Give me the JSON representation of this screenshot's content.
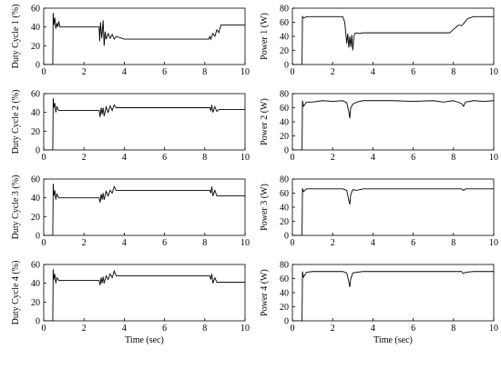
{
  "chart_data": [
    {
      "type": "line",
      "ylabel": "Duty Cycle 1 (%)",
      "xlabel": "",
      "xlim": [
        0,
        10
      ],
      "ylim": [
        0,
        60
      ],
      "xticks": [
        "0",
        "2",
        "4",
        "6",
        "8",
        "10"
      ],
      "yticks": [
        "0",
        "20",
        "40",
        "60"
      ],
      "series": [
        {
          "x": [
            0,
            0.45,
            0.47,
            0.5,
            0.55,
            0.6,
            0.65,
            0.7,
            0.75,
            0.8,
            1.0,
            2.75,
            2.78,
            2.82,
            2.88,
            2.95,
            3.0,
            3.05,
            3.1,
            3.2,
            3.3,
            3.4,
            3.5,
            3.6,
            4.0,
            8.2,
            8.25,
            8.3,
            8.4,
            8.5,
            8.6,
            8.7,
            8.8,
            9.0,
            10
          ],
          "y": [
            0,
            0,
            55,
            42,
            50,
            38,
            44,
            40,
            46,
            40,
            40,
            40,
            25,
            45,
            28,
            47,
            20,
            35,
            27,
            33,
            28,
            32,
            27,
            30,
            27,
            27,
            30,
            27,
            33,
            30,
            37,
            34,
            42,
            42,
            42
          ]
        }
      ]
    },
    {
      "type": "line",
      "ylabel": "Power 1 (W)",
      "xlabel": "",
      "xlim": [
        0,
        10
      ],
      "ylim": [
        0,
        80
      ],
      "xticks": [
        "0",
        "2",
        "4",
        "6",
        "8",
        "10"
      ],
      "yticks": [
        "0",
        "20",
        "40",
        "60",
        "80"
      ],
      "series": [
        {
          "x": [
            0,
            0.48,
            0.5,
            0.55,
            0.7,
            1.0,
            2.5,
            2.6,
            2.65,
            2.7,
            2.75,
            2.8,
            2.85,
            2.9,
            2.95,
            3.0,
            3.05,
            3.1,
            3.2,
            3.3,
            3.5,
            4.0,
            7.8,
            7.9,
            8.0,
            8.1,
            8.2,
            8.3,
            8.4,
            8.5,
            8.7,
            9.0,
            10
          ],
          "y": [
            0,
            0,
            68,
            66,
            68,
            68,
            68,
            60,
            45,
            30,
            44,
            24,
            40,
            25,
            42,
            20,
            38,
            44,
            45,
            44,
            45,
            45,
            45,
            47,
            50,
            52,
            55,
            56,
            55,
            58,
            65,
            68,
            68
          ]
        }
      ]
    },
    {
      "type": "line",
      "ylabel": "Duty Cycle 2 (%)",
      "xlabel": "",
      "xlim": [
        0,
        10
      ],
      "ylim": [
        0,
        60
      ],
      "xticks": [
        "0",
        "2",
        "4",
        "6",
        "8",
        "10"
      ],
      "yticks": [
        "0",
        "20",
        "40",
        "60"
      ],
      "series": [
        {
          "x": [
            0,
            0.45,
            0.47,
            0.5,
            0.55,
            0.6,
            0.65,
            0.75,
            1.0,
            2.75,
            2.8,
            2.85,
            2.9,
            2.95,
            3.0,
            3.1,
            3.2,
            3.3,
            3.4,
            3.5,
            3.6,
            4.0,
            8.25,
            8.3,
            8.35,
            8.4,
            8.5,
            8.6,
            8.7,
            10
          ],
          "y": [
            0,
            0,
            55,
            45,
            50,
            40,
            46,
            42,
            42,
            42,
            35,
            45,
            38,
            45,
            36,
            46,
            40,
            47,
            42,
            48,
            45,
            45,
            45,
            42,
            48,
            40,
            46,
            41,
            43,
            43
          ]
        }
      ]
    },
    {
      "type": "line",
      "ylabel": "Power 2 (W)",
      "xlabel": "",
      "xlim": [
        0,
        10
      ],
      "ylim": [
        0,
        80
      ],
      "xticks": [
        "0",
        "2",
        "4",
        "6",
        "8",
        "10"
      ],
      "yticks": [
        "0",
        "20",
        "40",
        "60",
        "80"
      ],
      "series": [
        {
          "x": [
            0,
            0.48,
            0.5,
            0.55,
            0.7,
            1.0,
            1.5,
            2.0,
            2.5,
            2.7,
            2.8,
            2.85,
            2.9,
            3.0,
            3.2,
            3.5,
            4.0,
            5.0,
            6.0,
            7.0,
            7.5,
            8.0,
            8.4,
            8.5,
            8.6,
            9.0,
            9.5,
            10
          ],
          "y": [
            0,
            0,
            70,
            62,
            68,
            68,
            70,
            69,
            70,
            67,
            55,
            45,
            60,
            65,
            68,
            70,
            70,
            70,
            69,
            70,
            68,
            70,
            66,
            62,
            68,
            70,
            69,
            70
          ]
        }
      ]
    },
    {
      "type": "line",
      "ylabel": "Duty Cycle 3 (%)",
      "xlabel": "",
      "xlim": [
        0,
        10
      ],
      "ylim": [
        0,
        60
      ],
      "xticks": [
        "0",
        "2",
        "4",
        "6",
        "8",
        "10"
      ],
      "yticks": [
        "0",
        "20",
        "40",
        "60"
      ],
      "series": [
        {
          "x": [
            0,
            0.45,
            0.47,
            0.5,
            0.55,
            0.6,
            0.65,
            0.75,
            1.0,
            2.75,
            2.8,
            2.85,
            2.9,
            2.95,
            3.0,
            3.1,
            3.2,
            3.3,
            3.4,
            3.5,
            3.6,
            4.0,
            8.25,
            8.3,
            8.35,
            8.4,
            8.5,
            8.6,
            8.7,
            10
          ],
          "y": [
            0,
            0,
            55,
            42,
            48,
            38,
            44,
            40,
            40,
            40,
            35,
            44,
            38,
            45,
            38,
            47,
            42,
            48,
            45,
            52,
            48,
            48,
            48,
            45,
            52,
            42,
            48,
            42,
            42,
            42
          ]
        }
      ]
    },
    {
      "type": "line",
      "ylabel": "Power 3 (W)",
      "xlabel": "",
      "xlim": [
        0,
        10
      ],
      "ylim": [
        0,
        80
      ],
      "xticks": [
        "0",
        "2",
        "4",
        "6",
        "8",
        "10"
      ],
      "yticks": [
        "0",
        "20",
        "40",
        "60",
        "80"
      ],
      "series": [
        {
          "x": [
            0,
            0.48,
            0.5,
            0.55,
            0.7,
            1.0,
            2.5,
            2.7,
            2.8,
            2.85,
            2.9,
            3.0,
            3.2,
            3.5,
            4.0,
            8.4,
            8.5,
            8.6,
            9.0,
            10
          ],
          "y": [
            0,
            0,
            67,
            62,
            66,
            66,
            66,
            64,
            50,
            44,
            58,
            65,
            64,
            66,
            66,
            66,
            64,
            66,
            66,
            66
          ]
        }
      ]
    },
    {
      "type": "line",
      "ylabel": "Duty Cycle 4 (%)",
      "xlabel": "Time (sec)",
      "xlim": [
        0,
        10
      ],
      "ylim": [
        0,
        60
      ],
      "xticks": [
        "0",
        "2",
        "4",
        "6",
        "8",
        "10"
      ],
      "yticks": [
        "0",
        "20",
        "40",
        "60"
      ],
      "series": [
        {
          "x": [
            0,
            0.45,
            0.47,
            0.5,
            0.55,
            0.6,
            0.65,
            0.75,
            1.0,
            2.75,
            2.8,
            2.85,
            2.9,
            2.95,
            3.0,
            3.1,
            3.2,
            3.3,
            3.4,
            3.5,
            3.6,
            4.0,
            8.25,
            8.3,
            8.35,
            8.4,
            8.5,
            8.6,
            8.7,
            10
          ],
          "y": [
            0,
            0,
            55,
            44,
            50,
            40,
            46,
            43,
            43,
            43,
            38,
            46,
            40,
            47,
            40,
            48,
            44,
            50,
            46,
            53,
            48,
            48,
            48,
            44,
            50,
            40,
            46,
            41,
            41,
            41
          ]
        }
      ]
    },
    {
      "type": "line",
      "ylabel": "Power 4 (W)",
      "xlabel": "Time (sec)",
      "xlim": [
        0,
        10
      ],
      "ylim": [
        0,
        80
      ],
      "xticks": [
        "0",
        "2",
        "4",
        "6",
        "8",
        "10"
      ],
      "yticks": [
        "0",
        "20",
        "40",
        "60",
        "80"
      ],
      "series": [
        {
          "x": [
            0,
            0.48,
            0.5,
            0.55,
            0.7,
            1.0,
            2.5,
            2.7,
            2.8,
            2.85,
            2.9,
            3.0,
            3.2,
            3.5,
            4.0,
            8.4,
            8.5,
            8.6,
            9.0,
            10
          ],
          "y": [
            0,
            0,
            70,
            62,
            69,
            70,
            70,
            68,
            56,
            48,
            60,
            68,
            69,
            70,
            70,
            70,
            67,
            69,
            70,
            70
          ]
        }
      ]
    }
  ]
}
